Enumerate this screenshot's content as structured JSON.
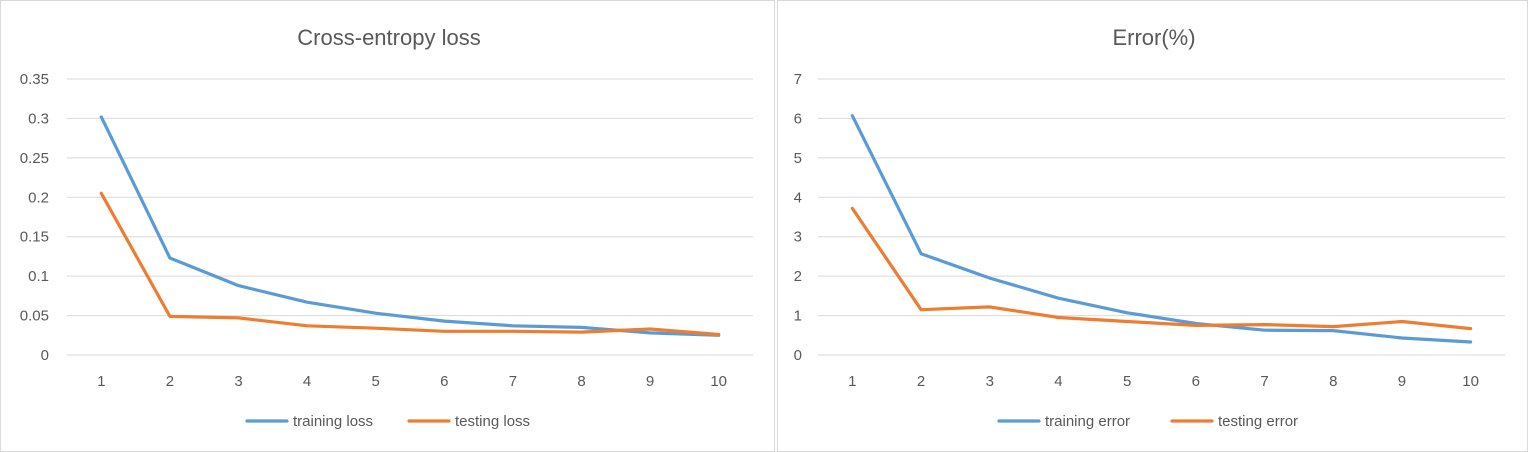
{
  "chart_data": [
    {
      "type": "line",
      "title": "Cross-entropy loss",
      "xlabel": "",
      "ylabel": "",
      "categories": [
        "1",
        "2",
        "3",
        "4",
        "5",
        "6",
        "7",
        "8",
        "9",
        "10"
      ],
      "ylim": [
        0,
        0.35
      ],
      "yticks": [
        "0",
        "0.05",
        "0.1",
        "0.15",
        "0.2",
        "0.25",
        "0.3",
        "0.35"
      ],
      "grid": true,
      "legend": "bottom",
      "series": [
        {
          "name": "training loss",
          "color": "#5b9bd5",
          "values": [
            0.302,
            0.123,
            0.088,
            0.067,
            0.053,
            0.043,
            0.037,
            0.035,
            0.028,
            0.025
          ]
        },
        {
          "name": "testing loss",
          "color": "#ed7d31",
          "values": [
            0.205,
            0.049,
            0.047,
            0.037,
            0.034,
            0.03,
            0.03,
            0.029,
            0.033,
            0.026
          ]
        }
      ]
    },
    {
      "type": "line",
      "title": "Error(%)",
      "xlabel": "",
      "ylabel": "",
      "categories": [
        "1",
        "2",
        "3",
        "4",
        "5",
        "6",
        "7",
        "8",
        "9",
        "10"
      ],
      "ylim": [
        0,
        7
      ],
      "yticks": [
        "0",
        "1",
        "2",
        "3",
        "4",
        "5",
        "6",
        "7"
      ],
      "grid": true,
      "legend": "bottom",
      "series": [
        {
          "name": "training error",
          "color": "#5b9bd5",
          "values": [
            6.07,
            2.57,
            1.95,
            1.44,
            1.07,
            0.8,
            0.63,
            0.62,
            0.43,
            0.33
          ]
        },
        {
          "name": "testing error",
          "color": "#ed7d31",
          "values": [
            3.72,
            1.15,
            1.22,
            0.95,
            0.85,
            0.75,
            0.77,
            0.72,
            0.85,
            0.67
          ]
        }
      ]
    }
  ]
}
